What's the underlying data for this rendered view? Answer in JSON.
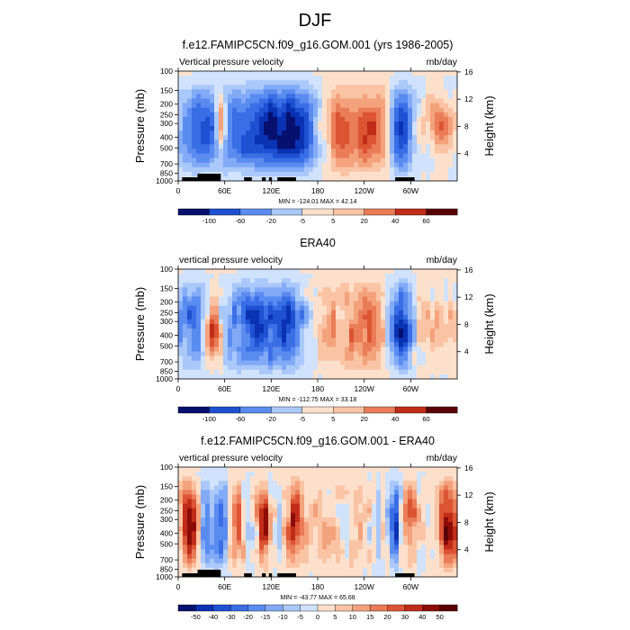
{
  "figure": {
    "main_title": "DJF",
    "panels": [
      {
        "title": "f.e12.FAMIPC5CN.f09_g16.GOM.001 (yrs 1986-2005)",
        "left_label": "Vertical pressure velocity",
        "right_label": "mb/day",
        "minmax": "MIN = -124.01  MAX =  42.14"
      },
      {
        "title": "ERA40",
        "left_label": "vertical pressure velocity",
        "right_label": "mb/day",
        "minmax": "MIN = -112.75  MAX =  33.18"
      },
      {
        "title": "f.e12.FAMIPC5CN.f09_g16.GOM.001 - ERA40",
        "left_label": "vertical pressure velocity",
        "right_label": "mb/day",
        "minmax": "MIN = -43.77  MAX =  65.68"
      }
    ],
    "ylabel_left": "Pressure (mb)",
    "ylabel_right": "Height (km)"
  },
  "chart_data": [
    {
      "type": "heatmap",
      "title": "f.e12.FAMIPC5CN.f09_g16.GOM.001 (yrs 1986-2005)",
      "subtitle_left": "Vertical pressure velocity",
      "units": "mb/day",
      "xlabel": "",
      "ylabel": "Pressure (mb)",
      "ylabel_right": "Height (km)",
      "x_tick_labels": [
        "0",
        "60E",
        "120E",
        "180",
        "120W",
        "60W"
      ],
      "x_range": [
        0,
        360
      ],
      "y_tick_labels": [
        "100",
        "150",
        "200",
        "250",
        "300",
        "400",
        "500",
        "700",
        "850",
        "1000"
      ],
      "y_range": [
        1000,
        100
      ],
      "y_right_tick_labels": [
        "4",
        "8",
        "12",
        "16"
      ],
      "colorbar_levels": [
        -100,
        -60,
        -20,
        -5,
        5,
        20,
        40,
        60
      ],
      "min": -124.01,
      "max": 42.14
    },
    {
      "type": "heatmap",
      "title": "ERA40",
      "subtitle_left": "vertical pressure velocity",
      "units": "mb/day",
      "xlabel": "",
      "ylabel": "Pressure (mb)",
      "ylabel_right": "Height (km)",
      "x_tick_labels": [
        "0",
        "60E",
        "120E",
        "180",
        "120W",
        "60W"
      ],
      "x_range": [
        0,
        360
      ],
      "y_tick_labels": [
        "100",
        "150",
        "200",
        "250",
        "300",
        "400",
        "500",
        "700",
        "850",
        "1000"
      ],
      "y_range": [
        1000,
        100
      ],
      "y_right_tick_labels": [
        "4",
        "8",
        "12",
        "16"
      ],
      "colorbar_levels": [
        -100,
        -60,
        -20,
        -5,
        5,
        20,
        40,
        60
      ],
      "min": -112.75,
      "max": 33.18
    },
    {
      "type": "heatmap",
      "title": "f.e12.FAMIPC5CN.f09_g16.GOM.001 - ERA40",
      "subtitle_left": "vertical pressure velocity",
      "units": "mb/day",
      "xlabel": "",
      "ylabel": "Pressure (mb)",
      "ylabel_right": "Height (km)",
      "x_tick_labels": [
        "0",
        "60E",
        "120E",
        "180",
        "120W",
        "60W"
      ],
      "x_range": [
        0,
        360
      ],
      "y_tick_labels": [
        "100",
        "150",
        "200",
        "250",
        "300",
        "400",
        "500",
        "700",
        "850",
        "1000"
      ],
      "y_range": [
        1000,
        100
      ],
      "y_right_tick_labels": [
        "4",
        "8",
        "12",
        "16"
      ],
      "colorbar_levels": [
        -50,
        -40,
        -30,
        -20,
        -15,
        -10,
        -5,
        0,
        5,
        10,
        15,
        20,
        30,
        40,
        50
      ],
      "min": -43.77,
      "max": 65.68
    }
  ],
  "palette": [
    "#06106e",
    "#0a32b4",
    "#1e50d2",
    "#3a6ee6",
    "#5a8cf0",
    "#82aaf6",
    "#aac8fa",
    "#d0e2fc",
    "#fde0cc",
    "#fac4a4",
    "#f4a27c",
    "#ea7c58",
    "#dc5434",
    "#c02c18",
    "#8c0c06",
    "#5a0202"
  ]
}
